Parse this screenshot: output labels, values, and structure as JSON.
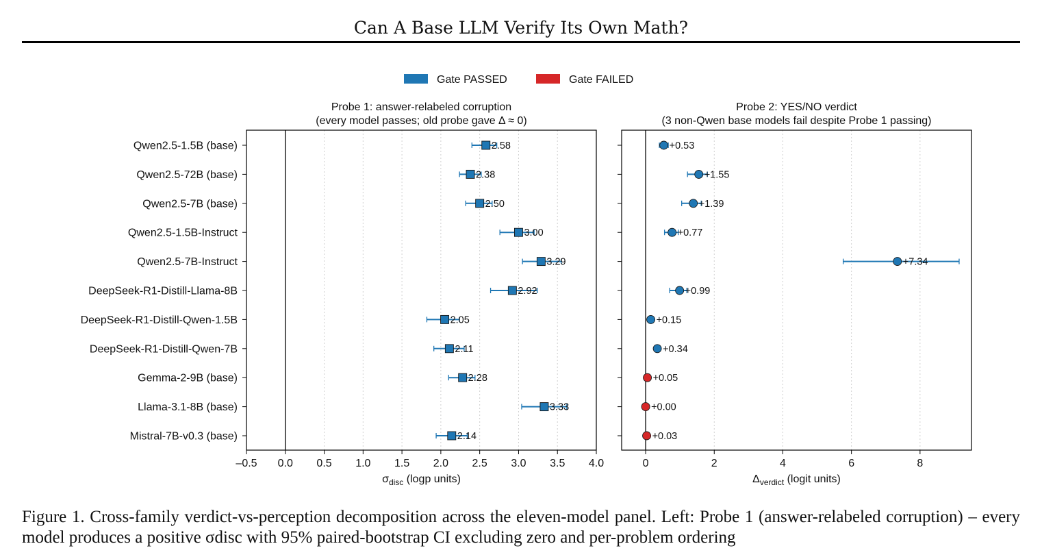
{
  "page": {
    "title": "Can A Base LLM Verify Its Own Math?",
    "caption": "Figure 1. Cross-family verdict-vs-perception decomposition across the eleven-model panel. Left: Probe 1 (answer-relabeled corruption) – every model produces a positive σdisc with 95% paired-bootstrap CI excluding zero and per-problem ordering"
  },
  "legend": {
    "position": "top-center",
    "items": [
      {
        "label": "Gate PASSED",
        "color": "#1f77b4"
      },
      {
        "label": "Gate FAILED",
        "color": "#d62728"
      }
    ]
  },
  "chart_data": [
    {
      "type": "scatter",
      "marker": "square",
      "title": "Probe 1: answer-relabeled corruption",
      "subtitle": "(every model passes; old probe gave Δ ≈ 0)",
      "xlabel_symbol": "σ",
      "xlabel_sub": "disc",
      "xlabel_unit": "(logp units)",
      "xlim": [
        -0.5,
        4.0
      ],
      "xticks": [
        -0.5,
        0.0,
        0.5,
        1.0,
        1.5,
        2.0,
        2.5,
        3.0,
        3.5,
        4.0
      ],
      "xtick_labels": [
        "–0.5",
        "0.0",
        "0.5",
        "1.0",
        "1.5",
        "2.0",
        "2.5",
        "3.0",
        "3.5",
        "4.0"
      ],
      "grid": "x-dotted",
      "zero_line": 0,
      "categories": [
        "Qwen2.5-1.5B (base)",
        "Qwen2.5-72B (base)",
        "Qwen2.5-7B (base)",
        "Qwen2.5-1.5B-Instruct",
        "Qwen2.5-7B-Instruct",
        "DeepSeek-R1-Distill-Llama-8B",
        "DeepSeek-R1-Distill-Qwen-1.5B",
        "DeepSeek-R1-Distill-Qwen-7B",
        "Gemma-2-9B (base)",
        "Llama-3.1-8B (base)",
        "Mistral-7B-v0.3 (base)"
      ],
      "values": [
        2.58,
        2.38,
        2.5,
        3.0,
        3.29,
        2.92,
        2.05,
        2.11,
        2.28,
        3.33,
        2.14
      ],
      "ci_low": [
        2.4,
        2.24,
        2.32,
        2.76,
        3.05,
        2.64,
        1.82,
        1.91,
        2.1,
        3.04,
        1.94
      ],
      "ci_high": [
        2.72,
        2.52,
        2.66,
        3.2,
        3.55,
        3.24,
        2.24,
        2.3,
        2.44,
        3.62,
        2.34
      ],
      "gate": [
        "pass",
        "pass",
        "pass",
        "pass",
        "pass",
        "pass",
        "pass",
        "pass",
        "pass",
        "pass",
        "pass"
      ],
      "labels": [
        "2.58",
        "2.38",
        "2.50",
        "3.00",
        "3.29",
        "2.92",
        "2.05",
        "2.11",
        "2.28",
        "3.33",
        "2.14"
      ]
    },
    {
      "type": "scatter",
      "marker": "circle",
      "title": "Probe 2: YES/NO verdict",
      "subtitle": "(3 non-Qwen base models fail despite Probe 1 passing)",
      "xlabel_symbol": "Δ",
      "xlabel_sub": "verdict",
      "xlabel_unit": "(logit units)",
      "xlim": [
        -0.7,
        9.5
      ],
      "xticks": [
        0,
        2,
        4,
        6,
        8
      ],
      "xtick_labels": [
        "0",
        "2",
        "4",
        "6",
        "8"
      ],
      "grid": "x-dotted",
      "zero_line": 0,
      "categories": [
        "Qwen2.5-1.5B (base)",
        "Qwen2.5-72B (base)",
        "Qwen2.5-7B (base)",
        "Qwen2.5-1.5B-Instruct",
        "Qwen2.5-7B-Instruct",
        "DeepSeek-R1-Distill-Llama-8B",
        "DeepSeek-R1-Distill-Qwen-1.5B",
        "DeepSeek-R1-Distill-Qwen-7B",
        "Gemma-2-9B (base)",
        "Llama-3.1-8B (base)",
        "Mistral-7B-v0.3 (base)"
      ],
      "values": [
        0.53,
        1.55,
        1.39,
        0.77,
        7.34,
        0.99,
        0.15,
        0.34,
        0.05,
        0.0,
        0.03
      ],
      "ci_low": [
        0.4,
        1.22,
        1.05,
        0.55,
        5.76,
        0.7,
        0.11,
        0.27,
        0.02,
        -0.02,
        0.01
      ],
      "ci_high": [
        0.66,
        1.8,
        1.62,
        0.95,
        9.14,
        1.2,
        0.19,
        0.42,
        0.08,
        0.02,
        0.05
      ],
      "gate": [
        "pass",
        "pass",
        "pass",
        "pass",
        "pass",
        "pass",
        "pass",
        "pass",
        "fail",
        "fail",
        "fail"
      ],
      "labels": [
        "+0.53",
        "+1.55",
        "+1.39",
        "+0.77",
        "+7.34",
        "+0.99",
        "+0.15",
        "+0.34",
        "+0.05",
        "+0.00",
        "+0.03"
      ]
    }
  ]
}
